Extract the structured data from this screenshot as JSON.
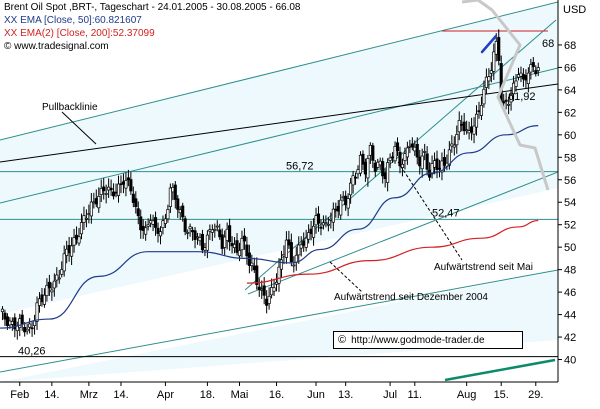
{
  "legend": {
    "title": "Brent Oil Spot ,BRT-, Tageschart - 24.01.2005 - 30.08.2005 - 66.08",
    "ema50": "XX EMA [Close, 50]:60.821607",
    "ema200": "XX EMA(2) [Close, 200]:52.37099",
    "source": "© www.tradesignal.com"
  },
  "watermark": "http://www.godmode-trader.de",
  "icon": "copyright-icon",
  "colors": {
    "background": "#ffffff",
    "channel_fill": "#edf9fc",
    "trendline": "#2f8f8f",
    "ema50": "#1e3a8a",
    "ema200": "#d42020",
    "candle": "#000000",
    "forecast": "#c8c8c8",
    "forecast_arrow": "#2040c0",
    "bottom_line": "#0c8a6a"
  },
  "chart_data": {
    "type": "candlestick",
    "title": "Brent Oil Spot ,BRT-, Tageschart - 24.01.2005 - 30.08.2005 - 66.08",
    "y_axis_label": "USD",
    "ylim": [
      38,
      72
    ],
    "y_ticks": [
      40,
      42,
      44,
      46,
      48,
      50,
      52,
      54,
      56,
      58,
      60,
      62,
      64,
      66,
      68
    ],
    "x_ticks": [
      {
        "label": "Feb",
        "day": 8
      },
      {
        "label": "14.",
        "day": 21
      },
      {
        "label": "Mrz",
        "day": 36
      },
      {
        "label": "14.",
        "day": 49
      },
      {
        "label": "Apr",
        "day": 67
      },
      {
        "label": "18.",
        "day": 84
      },
      {
        "label": "Mai",
        "day": 97
      },
      {
        "label": "16.",
        "day": 112
      },
      {
        "label": "Jun",
        "day": 128
      },
      {
        "label": "13.",
        "day": 140
      },
      {
        "label": "Jul",
        "day": 158
      },
      {
        "label": "11.",
        "day": 168
      },
      {
        "label": "Aug",
        "day": 189
      },
      {
        "label": "15.",
        "day": 203
      },
      {
        "label": "29.",
        "day": 217
      }
    ],
    "price_close_path": [
      [
        0,
        44.0
      ],
      [
        4,
        43.4
      ],
      [
        8,
        43.0
      ],
      [
        11,
        42.6
      ],
      [
        13,
        43.2
      ],
      [
        15,
        44.8
      ],
      [
        18,
        45.6
      ],
      [
        21,
        46.8
      ],
      [
        24,
        47.6
      ],
      [
        27,
        49.4
      ],
      [
        30,
        50.6
      ],
      [
        33,
        52.0
      ],
      [
        36,
        53.0
      ],
      [
        39,
        54.5
      ],
      [
        42,
        55.2
      ],
      [
        45,
        54.6
      ],
      [
        48,
        55.4
      ],
      [
        50,
        56.2
      ],
      [
        53,
        55.0
      ],
      [
        55,
        53.2
      ],
      [
        57,
        52.2
      ],
      [
        59,
        51.4
      ],
      [
        61,
        52.6
      ],
      [
        63,
        51.2
      ],
      [
        65,
        51.8
      ],
      [
        67,
        52.6
      ],
      [
        69,
        55.2
      ],
      [
        72,
        53.6
      ],
      [
        75,
        52.0
      ],
      [
        78,
        51.2
      ],
      [
        80,
        50.6
      ],
      [
        82,
        50.0
      ],
      [
        84,
        51.0
      ],
      [
        86,
        52.0
      ],
      [
        88,
        51.2
      ],
      [
        90,
        50.2
      ],
      [
        92,
        51.4
      ],
      [
        94,
        50.6
      ],
      [
        96,
        49.2
      ],
      [
        98,
        50.6
      ],
      [
        100,
        49.4
      ],
      [
        102,
        48.6
      ],
      [
        104,
        47.0
      ],
      [
        106,
        45.6
      ],
      [
        108,
        45.2
      ],
      [
        110,
        46.2
      ],
      [
        112,
        47.4
      ],
      [
        114,
        48.4
      ],
      [
        116,
        50.6
      ],
      [
        118,
        48.8
      ],
      [
        120,
        49.4
      ],
      [
        122,
        50.4
      ],
      [
        124,
        50.2
      ],
      [
        126,
        51.6
      ],
      [
        128,
        52.6
      ],
      [
        130,
        52.2
      ],
      [
        132,
        51.6
      ],
      [
        134,
        52.6
      ],
      [
        136,
        53.4
      ],
      [
        138,
        54.4
      ],
      [
        140,
        53.8
      ],
      [
        142,
        55.2
      ],
      [
        144,
        56.6
      ],
      [
        146,
        58.0
      ],
      [
        148,
        57.0
      ],
      [
        150,
        58.4
      ],
      [
        152,
        57.0
      ],
      [
        154,
        57.6
      ],
      [
        156,
        56.4
      ],
      [
        158,
        57.8
      ],
      [
        160,
        58.6
      ],
      [
        162,
        57.6
      ],
      [
        164,
        58.2
      ],
      [
        166,
        59.4
      ],
      [
        168,
        58.2
      ],
      [
        170,
        57.6
      ],
      [
        172,
        58.4
      ],
      [
        174,
        56.6
      ],
      [
        176,
        57.4
      ],
      [
        178,
        56.8
      ],
      [
        180,
        57.6
      ],
      [
        182,
        58.6
      ],
      [
        184,
        59.4
      ],
      [
        186,
        60.6
      ],
      [
        188,
        60.8
      ],
      [
        190,
        60.2
      ],
      [
        192,
        61.2
      ],
      [
        194,
        61.6
      ],
      [
        196,
        64.0
      ],
      [
        198,
        65.4
      ],
      [
        200,
        67.4
      ],
      [
        201,
        68.0
      ],
      [
        202,
        66.8
      ],
      [
        203,
        63.0
      ],
      [
        204,
        62.2
      ],
      [
        206,
        63.2
      ],
      [
        208,
        64.4
      ],
      [
        210,
        65.8
      ],
      [
        212,
        64.4
      ],
      [
        214,
        65.6
      ],
      [
        216,
        66.2
      ],
      [
        218,
        66.08
      ]
    ],
    "series": [
      {
        "name": "XX EMA [Close, 50]:60.821607",
        "color": "#1e3a8a",
        "values": [
          [
            0,
            42.8
          ],
          [
            20,
            43.6
          ],
          [
            40,
            47.4
          ],
          [
            60,
            49.6
          ],
          [
            80,
            49.6
          ],
          [
            100,
            49.0
          ],
          [
            118,
            48.6
          ],
          [
            130,
            49.8
          ],
          [
            145,
            51.6
          ],
          [
            160,
            54.4
          ],
          [
            175,
            56.6
          ],
          [
            190,
            58.4
          ],
          [
            205,
            60.0
          ],
          [
            218,
            60.82
          ]
        ]
      },
      {
        "name": "XX EMA(2) [Close, 200]:52.37099",
        "color": "#d42020",
        "values": [
          [
            100,
            46.8
          ],
          [
            125,
            47.6
          ],
          [
            150,
            48.8
          ],
          [
            175,
            50.0
          ],
          [
            195,
            50.8
          ],
          [
            210,
            51.8
          ],
          [
            218,
            52.37
          ]
        ]
      }
    ],
    "horizontal_levels": [
      {
        "label": "56,72",
        "value": 56.72
      },
      {
        "label": "52,47",
        "value": 52.47
      },
      {
        "label": "40,26",
        "value": 40.26
      },
      {
        "label": "68",
        "value": 68.0
      }
    ],
    "annotations": [
      {
        "text": "Pullbacklinie"
      },
      {
        "text": "61,92",
        "value": 61.92
      },
      {
        "text": "Aufwärtstrend seit Mai"
      },
      {
        "text": "Aufwärtstrend seit Dezember 2004"
      }
    ]
  }
}
